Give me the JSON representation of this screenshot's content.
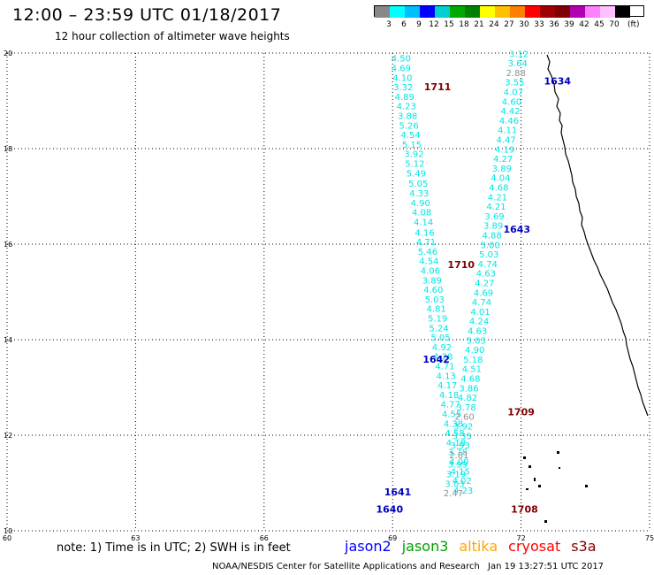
{
  "header": {
    "title": "12:00 – 23:59 UTC 01/18/2017",
    "subtitle": "12 hour collection of altimeter wave heights"
  },
  "legend": {
    "colors": [
      "#888888",
      "#00ffff",
      "#00bfff",
      "#0000ff",
      "#00d0d0",
      "#00a800",
      "#008000",
      "#ffff00",
      "#ffc000",
      "#ff8000",
      "#ff0000",
      "#a00000",
      "#800000",
      "#b000b0",
      "#ff80ff",
      "#ffc0ff",
      "#000000"
    ],
    "labels": [
      "3",
      "6",
      "9",
      "12",
      "15",
      "18",
      "21",
      "24",
      "27",
      "30",
      "33",
      "36",
      "39",
      "42",
      "45",
      "70"
    ],
    "unit": "(ft)"
  },
  "map": {
    "lon_range": [
      60,
      75
    ],
    "lat_range": [
      10,
      20
    ],
    "lon_ticks": [
      "60",
      "63",
      "66",
      "69",
      "72",
      "75"
    ],
    "lat_ticks": [
      "10",
      "12",
      "14",
      "16",
      "18",
      "20"
    ],
    "grid": "dotted",
    "tracks": [
      {
        "name": "jason2-1640-1642",
        "color_class": "cyan",
        "points": [
          {
            "lon": 69.2,
            "lat": 19.82,
            "v": "4.50"
          },
          {
            "lon": 69.2,
            "lat": 19.62,
            "v": "4.69"
          },
          {
            "lon": 69.23,
            "lat": 19.42,
            "v": "4.10"
          },
          {
            "lon": 69.25,
            "lat": 19.22,
            "v": "3.32"
          },
          {
            "lon": 69.28,
            "lat": 19.02,
            "v": "4.89"
          },
          {
            "lon": 69.32,
            "lat": 18.82,
            "v": "4.23"
          },
          {
            "lon": 69.35,
            "lat": 18.62,
            "v": "3.88"
          },
          {
            "lon": 69.38,
            "lat": 18.42,
            "v": "5.26"
          },
          {
            "lon": 69.42,
            "lat": 18.22,
            "v": "4.54"
          },
          {
            "lon": 69.45,
            "lat": 18.02,
            "v": "5.15"
          },
          {
            "lon": 69.5,
            "lat": 17.82,
            "v": "3.92"
          },
          {
            "lon": 69.52,
            "lat": 17.62,
            "v": "5.12"
          },
          {
            "lon": 69.55,
            "lat": 17.42,
            "v": "5.49"
          },
          {
            "lon": 69.6,
            "lat": 17.2,
            "v": "5.05"
          },
          {
            "lon": 69.62,
            "lat": 17.0,
            "v": "4.33"
          },
          {
            "lon": 69.65,
            "lat": 16.8,
            "v": "4.90"
          },
          {
            "lon": 69.68,
            "lat": 16.6,
            "v": "4.08"
          },
          {
            "lon": 69.72,
            "lat": 16.4,
            "v": "4.14"
          },
          {
            "lon": 69.75,
            "lat": 16.18,
            "v": "4.16"
          },
          {
            "lon": 69.78,
            "lat": 15.98,
            "v": "4.71"
          },
          {
            "lon": 69.82,
            "lat": 15.78,
            "v": "5.46"
          },
          {
            "lon": 69.85,
            "lat": 15.58,
            "v": "4.54"
          },
          {
            "lon": 69.88,
            "lat": 15.38,
            "v": "4.06"
          },
          {
            "lon": 69.92,
            "lat": 15.18,
            "v": "3.89"
          },
          {
            "lon": 69.95,
            "lat": 14.98,
            "v": "4.60"
          },
          {
            "lon": 69.98,
            "lat": 14.78,
            "v": "5.03"
          },
          {
            "lon": 70.02,
            "lat": 14.58,
            "v": "4.81"
          },
          {
            "lon": 70.05,
            "lat": 14.38,
            "v": "5.19"
          },
          {
            "lon": 70.08,
            "lat": 14.18,
            "v": "5.24"
          },
          {
            "lon": 70.12,
            "lat": 13.98,
            "v": "5.05"
          },
          {
            "lon": 70.15,
            "lat": 13.78,
            "v": "4.92"
          },
          {
            "lon": 70.18,
            "lat": 13.58,
            "v": "4.28"
          },
          {
            "lon": 70.22,
            "lat": 13.38,
            "v": "4.71"
          },
          {
            "lon": 70.25,
            "lat": 13.18,
            "v": "4.13"
          },
          {
            "lon": 70.28,
            "lat": 12.98,
            "v": "4.17"
          },
          {
            "lon": 70.32,
            "lat": 12.78,
            "v": "4.18"
          },
          {
            "lon": 70.35,
            "lat": 12.58,
            "v": "4.77"
          },
          {
            "lon": 70.38,
            "lat": 12.38,
            "v": "4.55"
          },
          {
            "lon": 70.42,
            "lat": 12.18,
            "v": "4.38"
          },
          {
            "lon": 70.45,
            "lat": 11.98,
            "v": "4.58"
          },
          {
            "lon": 70.48,
            "lat": 11.78,
            "v": "4.18"
          },
          {
            "lon": 70.52,
            "lat": 11.58,
            "v": "3.78"
          },
          {
            "lon": 70.55,
            "lat": 11.38,
            "v": "4.00"
          },
          {
            "lon": 70.58,
            "lat": 11.18,
            "v": "4.15"
          },
          {
            "lon": 70.62,
            "lat": 10.98,
            "v": "4.02"
          },
          {
            "lon": 70.65,
            "lat": 10.78,
            "v": "4.23"
          }
        ]
      },
      {
        "name": "track-1710-1643",
        "color_class": "cyan",
        "points": [
          {
            "lon": 71.95,
            "lat": 19.92,
            "v": "3.12"
          },
          {
            "lon": 71.92,
            "lat": 19.72,
            "v": "3.64"
          },
          {
            "lon": 71.88,
            "lat": 19.52,
            "v": "2.88",
            "gray": true
          },
          {
            "lon": 71.85,
            "lat": 19.32,
            "v": "3.55"
          },
          {
            "lon": 71.82,
            "lat": 19.12,
            "v": "4.07"
          },
          {
            "lon": 71.78,
            "lat": 18.92,
            "v": "4.60"
          },
          {
            "lon": 71.75,
            "lat": 18.72,
            "v": "4.42"
          },
          {
            "lon": 71.72,
            "lat": 18.52,
            "v": "4.46"
          },
          {
            "lon": 71.68,
            "lat": 18.32,
            "v": "4.11"
          },
          {
            "lon": 71.65,
            "lat": 18.12,
            "v": "4.47"
          },
          {
            "lon": 71.62,
            "lat": 17.92,
            "v": "4.19"
          },
          {
            "lon": 71.58,
            "lat": 17.72,
            "v": "4.27"
          },
          {
            "lon": 71.55,
            "lat": 17.52,
            "v": "3.89"
          },
          {
            "lon": 71.52,
            "lat": 17.32,
            "v": "4.04"
          },
          {
            "lon": 71.48,
            "lat": 17.12,
            "v": "4.68"
          },
          {
            "lon": 71.45,
            "lat": 16.92,
            "v": "4.21"
          },
          {
            "lon": 71.42,
            "lat": 16.72,
            "v": "4.21"
          },
          {
            "lon": 71.38,
            "lat": 16.52,
            "v": "3.69"
          },
          {
            "lon": 71.35,
            "lat": 16.32,
            "v": "3.89"
          },
          {
            "lon": 71.32,
            "lat": 16.12,
            "v": "4.88"
          },
          {
            "lon": 71.28,
            "lat": 15.92,
            "v": "5.00"
          },
          {
            "lon": 71.25,
            "lat": 15.72,
            "v": "5.03"
          },
          {
            "lon": 71.22,
            "lat": 15.52,
            "v": "4.74"
          },
          {
            "lon": 71.18,
            "lat": 15.32,
            "v": "4.63"
          },
          {
            "lon": 71.15,
            "lat": 15.12,
            "v": "4.27"
          },
          {
            "lon": 71.12,
            "lat": 14.92,
            "v": "4.69"
          },
          {
            "lon": 71.08,
            "lat": 14.72,
            "v": "4.74"
          },
          {
            "lon": 71.05,
            "lat": 14.52,
            "v": "4.01"
          },
          {
            "lon": 71.02,
            "lat": 14.32,
            "v": "4.24"
          },
          {
            "lon": 70.98,
            "lat": 14.12,
            "v": "4.63"
          },
          {
            "lon": 70.95,
            "lat": 13.92,
            "v": "5.03"
          },
          {
            "lon": 70.92,
            "lat": 13.72,
            "v": "4.90"
          },
          {
            "lon": 70.88,
            "lat": 13.52,
            "v": "5.18"
          },
          {
            "lon": 70.85,
            "lat": 13.32,
            "v": "4.51"
          },
          {
            "lon": 70.82,
            "lat": 13.12,
            "v": "4.68"
          },
          {
            "lon": 70.78,
            "lat": 12.92,
            "v": "3.86"
          },
          {
            "lon": 70.75,
            "lat": 12.72,
            "v": "4.82"
          },
          {
            "lon": 70.72,
            "lat": 12.52,
            "v": "3.78"
          },
          {
            "lon": 70.68,
            "lat": 12.32,
            "v": "2.60",
            "gray": true
          },
          {
            "lon": 70.65,
            "lat": 12.12,
            "v": "3.92"
          },
          {
            "lon": 70.62,
            "lat": 11.92,
            "v": "3.35"
          },
          {
            "lon": 70.58,
            "lat": 11.72,
            "v": "3.93"
          },
          {
            "lon": 70.55,
            "lat": 11.52,
            "v": "2.81",
            "gray": true
          },
          {
            "lon": 70.52,
            "lat": 11.32,
            "v": "3.99"
          },
          {
            "lon": 70.48,
            "lat": 11.12,
            "v": "3.19"
          },
          {
            "lon": 70.45,
            "lat": 10.92,
            "v": "3.03"
          },
          {
            "lon": 70.42,
            "lat": 10.72,
            "v": "2.47",
            "gray": true
          }
        ]
      }
    ],
    "track_labels": [
      {
        "text": "1711",
        "lon": 70.05,
        "lat": 19.22,
        "color": "#800000"
      },
      {
        "text": "1634",
        "lon": 72.85,
        "lat": 19.34,
        "color": "#0000c0"
      },
      {
        "text": "1643",
        "lon": 71.9,
        "lat": 16.24,
        "color": "#0000c0"
      },
      {
        "text": "1710",
        "lon": 70.6,
        "lat": 15.5,
        "color": "#800000"
      },
      {
        "text": "1642",
        "lon": 70.02,
        "lat": 13.52,
        "color": "#0000c0"
      },
      {
        "text": "1709",
        "lon": 72.0,
        "lat": 12.42,
        "color": "#800000"
      },
      {
        "text": "1641",
        "lon": 69.12,
        "lat": 10.74,
        "color": "#0000c0"
      },
      {
        "text": "1640",
        "lon": 68.93,
        "lat": 10.38,
        "color": "#0000c0"
      },
      {
        "text": "1708",
        "lon": 72.08,
        "lat": 10.38,
        "color": "#800000"
      }
    ]
  },
  "footer": {
    "note": "note: 1) Time is in UTC; 2) SWH is in feet",
    "satellites": [
      {
        "name": "jason2",
        "color": "#0000ff"
      },
      {
        "name": "jason3",
        "color": "#00a000"
      },
      {
        "name": "altika",
        "color": "#ffa500"
      },
      {
        "name": "cryosat",
        "color": "#ff0000"
      },
      {
        "name": "s3a",
        "color": "#800000"
      }
    ],
    "credit": "NOAA/NESDIS Center for Satellite Applications and Research",
    "timestamp": "Jan 19 13:27:51 UTC 2017"
  }
}
